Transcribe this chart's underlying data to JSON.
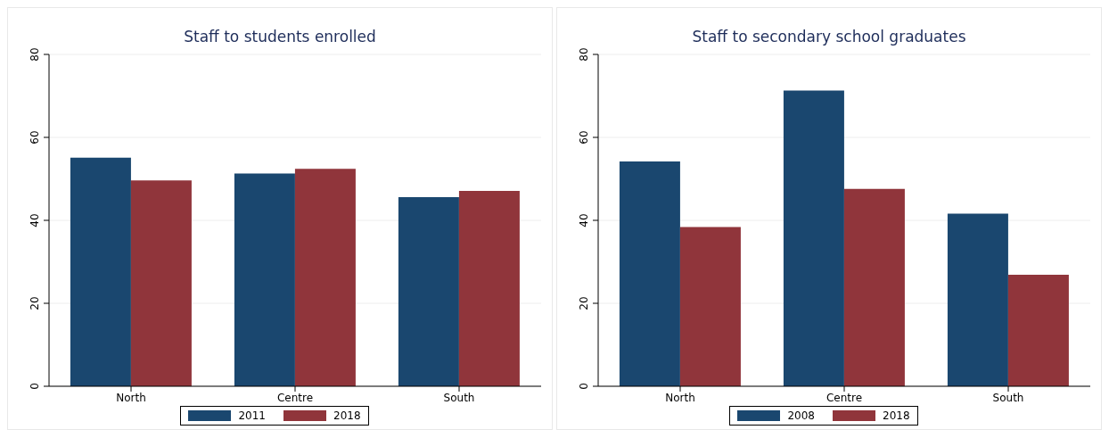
{
  "chart_data": [
    {
      "type": "bar",
      "title": "Staff to students enrolled",
      "categories": [
        "North",
        "Centre",
        "South"
      ],
      "series": [
        {
          "name": "2011",
          "color": "#1a476f",
          "values": [
            55.1,
            51.3,
            45.6
          ]
        },
        {
          "name": "2018",
          "color": "#90353b",
          "values": [
            49.6,
            52.4,
            47.1
          ]
        }
      ],
      "ylim": [
        0,
        80
      ],
      "yticks": [
        0,
        20,
        40,
        60,
        80
      ],
      "grid": "y",
      "legend": "bottom"
    },
    {
      "type": "bar",
      "title": "Staff to secondary school graduates",
      "categories": [
        "North",
        "Centre",
        "South"
      ],
      "series": [
        {
          "name": "2008",
          "color": "#1a476f",
          "values": [
            54.2,
            71.3,
            41.6
          ]
        },
        {
          "name": "2018",
          "color": "#90353b",
          "values": [
            38.4,
            47.6,
            26.9
          ]
        }
      ],
      "ylim": [
        0,
        80
      ],
      "yticks": [
        0,
        20,
        40,
        60,
        80
      ],
      "grid": "y",
      "legend": "bottom"
    }
  ]
}
